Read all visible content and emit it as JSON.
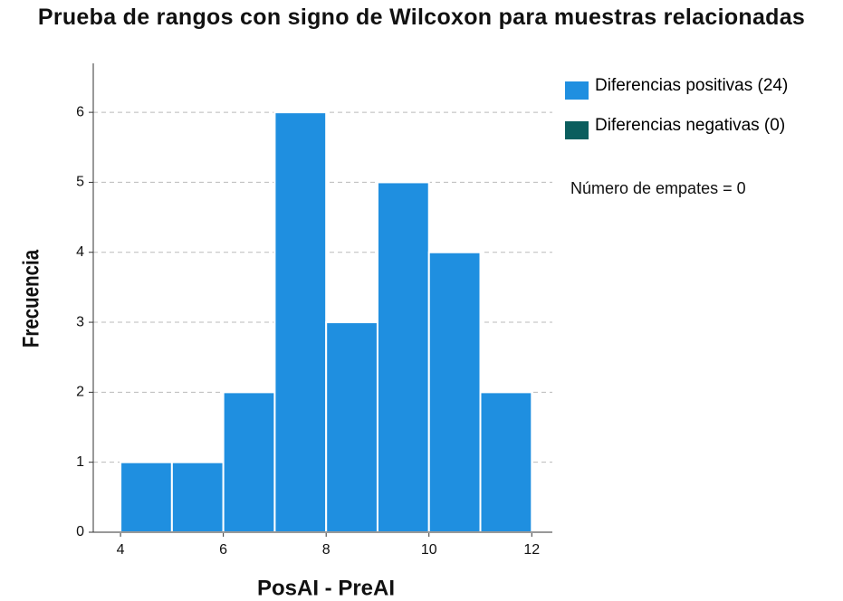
{
  "chart_data": {
    "type": "histogram",
    "title": "Prueba de rangos con signo de Wilcoxon para muestras relacionadas",
    "xlabel": "PosAI - PreAI",
    "ylabel": "Frecuencia",
    "bins": [
      4,
      5,
      6,
      7,
      8,
      9,
      10,
      11,
      12
    ],
    "series": [
      {
        "name": "Diferencias positivas (24)",
        "color": "#1f8fe0",
        "values": [
          1,
          1,
          2,
          6,
          3,
          5,
          4,
          2
        ]
      },
      {
        "name": "Diferencias negativas (0)",
        "color": "#0b5e5e",
        "values": [
          0,
          0,
          0,
          0,
          0,
          0,
          0,
          0
        ]
      }
    ],
    "annotation": "Número de empates = 0",
    "xlim": [
      3.47,
      12.4
    ],
    "xticks": [
      4,
      6,
      8,
      10,
      12
    ],
    "ylim": [
      0,
      6.7
    ],
    "yticks": [
      0,
      1,
      2,
      3,
      4,
      5,
      6
    ],
    "grid": true,
    "legend": "right"
  }
}
